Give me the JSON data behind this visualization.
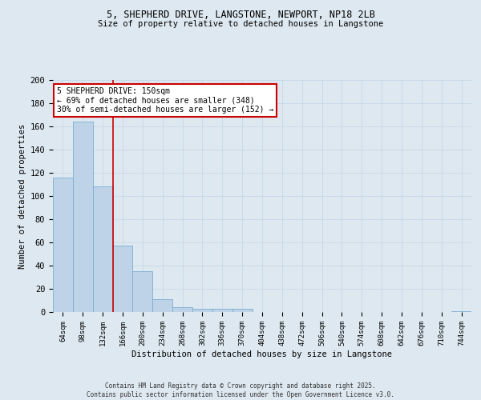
{
  "title_line1": "5, SHEPHERD DRIVE, LANGSTONE, NEWPORT, NP18 2LB",
  "title_line2": "Size of property relative to detached houses in Langstone",
  "xlabel": "Distribution of detached houses by size in Langstone",
  "ylabel": "Number of detached properties",
  "bar_color": "#bed3e8",
  "bar_edge_color": "#7aaed0",
  "vline_color": "#cc0000",
  "categories": [
    "64sqm",
    "98sqm",
    "132sqm",
    "166sqm",
    "200sqm",
    "234sqm",
    "268sqm",
    "302sqm",
    "336sqm",
    "370sqm",
    "404sqm",
    "438sqm",
    "472sqm",
    "506sqm",
    "540sqm",
    "574sqm",
    "608sqm",
    "642sqm",
    "676sqm",
    "710sqm",
    "744sqm"
  ],
  "values": [
    116,
    164,
    108,
    57,
    35,
    11,
    4,
    3,
    3,
    3,
    0,
    0,
    0,
    0,
    0,
    0,
    0,
    0,
    0,
    0,
    1
  ],
  "annotation_text": "5 SHEPHERD DRIVE: 150sqm\n← 69% of detached houses are smaller (348)\n30% of semi-detached houses are larger (152) →",
  "annotation_box_color": "#ffffff",
  "annotation_box_edge": "#cc0000",
  "ylim": [
    0,
    200
  ],
  "yticks": [
    0,
    20,
    40,
    60,
    80,
    100,
    120,
    140,
    160,
    180,
    200
  ],
  "grid_color": "#c8d8e8",
  "background_color": "#dde8f0",
  "footnote": "Contains HM Land Registry data © Crown copyright and database right 2025.\nContains public sector information licensed under the Open Government Licence v3.0."
}
